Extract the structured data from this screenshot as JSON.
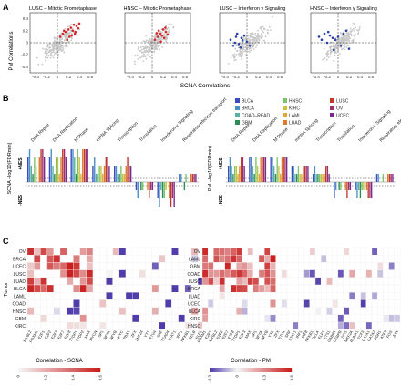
{
  "panel_labels": {
    "a": "A",
    "b": "B",
    "c": "C"
  },
  "panelA": {
    "ylabel": "PM Correlations",
    "xlabel": "SCNA Correlations",
    "xticks": [
      "-0.4",
      "-0.2",
      "0",
      "0.2",
      "0.4",
      "0.6"
    ],
    "yticks": [
      "0.4",
      "0.2",
      "0",
      "-0.2",
      "-0.4"
    ],
    "plots": [
      {
        "title": "LUSC – Mitotic Prometaphase",
        "color": "#d62728"
      },
      {
        "title": "HNSC – Mitotic Prometaphase",
        "color": "#d62728"
      },
      {
        "title": "LUSC – Interferon γ Signaling",
        "color": "#2a3fa8"
      },
      {
        "title": "HNSC – Interferon γ Signaling",
        "color": "#2a3fa8"
      }
    ]
  },
  "panelB": {
    "legend": [
      {
        "label": "BLCA",
        "color": "#3b4cc0"
      },
      {
        "label": "BRCA",
        "color": "#4a90c8"
      },
      {
        "label": "COAD–READ",
        "color": "#5bb0a0"
      },
      {
        "label": "GBM",
        "color": "#2e8b57"
      },
      {
        "label": "HNSC",
        "color": "#7cc36b"
      },
      {
        "label": "KIRC",
        "color": "#c7c33a"
      },
      {
        "label": "LAML",
        "color": "#e0a83a"
      },
      {
        "label": "LUAD",
        "color": "#e07a2a"
      },
      {
        "label": "LUSC",
        "color": "#c0392b"
      },
      {
        "label": "OV",
        "color": "#a0306a"
      },
      {
        "label": "UCEC",
        "color": "#7a2a8a"
      }
    ],
    "categories": [
      "DNA Repair",
      "DNA Replication",
      "M Phase",
      "mRNA Splicing",
      "Transcription",
      "Translation",
      "Interferon γ Signaling",
      "Respiratory electron transport"
    ],
    "left": {
      "ylabel": "SCNA –log10(FDRmin)",
      "pos_label": "+NES",
      "neg_label": "-NES"
    },
    "right": {
      "ylabel": "PM –log10(FDRmin)",
      "pos_label": "+NES",
      "neg_label": "-NES"
    }
  },
  "panelC": {
    "ylabel": "Tumor",
    "left": {
      "rows": [
        "OV",
        "BRCA",
        "UCEC",
        "LUSC",
        "LUAD",
        "BLCA",
        "LAML",
        "COAD",
        "HNSC",
        "GBM",
        "KIRC"
      ],
      "cols": [
        "MYBL2",
        "FOXM1",
        "E2F1",
        "E2F2",
        "E2F3",
        "E2F7",
        "E2F8",
        "TFDP1",
        "TFDP2",
        "MAX",
        "MYCN",
        "SP1",
        "NFYA",
        "NFYB",
        "NFYC",
        "PBX1",
        "ZFX",
        "ZNF24",
        "YY1",
        "ETV4",
        "SRF",
        "TEAD4",
        "STAT1",
        "IRF1",
        "NFKB1",
        "RELB",
        "ELF1"
      ],
      "legend_title": "Correlation - SCNA",
      "legend_ticks": [
        "0",
        "0.2",
        "0.4",
        "0.6"
      ]
    },
    "right": {
      "rows": [
        "OV",
        "LAML",
        "GBM",
        "COAD",
        "LUSC",
        "BRCA",
        "LUAD",
        "UCEC",
        "BLCA",
        "KIRC",
        "HNSC"
      ],
      "cols": [
        "FOXM1",
        "E2F1",
        "MYBL2",
        "E2F2",
        "E2F7",
        "E2F8",
        "TFDP1",
        "E2F3",
        "MAX",
        "SP1",
        "NFYA",
        "NFYB",
        "YY1",
        "ZFX",
        "ETV4",
        "SRF",
        "STAT1",
        "IRF1",
        "IRF8",
        "NFKB1",
        "RELA",
        "ELF1",
        "ETS1",
        "GABPA",
        "CEBPB",
        "SPI1",
        "MEF2A",
        "RUNX1",
        "TCF3",
        "GATA1",
        "GATA2",
        "EGR1",
        "ATF3",
        "FOS",
        "JUN"
      ],
      "legend_title": "Correlation - PM",
      "legend_ticks": [
        "-0.3",
        "0",
        "0.3",
        "0.6"
      ]
    }
  },
  "chart_data": [
    {
      "type": "scatter",
      "title": "LUSC – Mitotic Prometaphase",
      "xlabel": "SCNA Correlations",
      "ylabel": "PM Correlations",
      "xlim": [
        -0.5,
        0.7
      ],
      "ylim": [
        -0.5,
        0.5
      ],
      "highlight": {
        "x": [
          0.05,
          0.1,
          0.15,
          0.2,
          0.22,
          0.25,
          0.28,
          0.3,
          0.32,
          0.35,
          0.38,
          0.4,
          0.18,
          0.12,
          0.26,
          0.33
        ],
        "y": [
          0.1,
          0.15,
          0.18,
          0.22,
          0.1,
          0.25,
          0.2,
          0.3,
          0.15,
          0.28,
          0.24,
          0.32,
          0.05,
          0.2,
          0.12,
          0.18
        ]
      }
    },
    {
      "type": "scatter",
      "title": "HNSC – Mitotic Prometaphase",
      "xlabel": "SCNA Correlations",
      "ylabel": "PM Correlations",
      "xlim": [
        -0.5,
        0.7
      ],
      "ylim": [
        -0.5,
        0.5
      ],
      "highlight": {
        "x": [
          0.05,
          0.1,
          0.12,
          0.15,
          0.18,
          0.2,
          0.22,
          0.25,
          0.28,
          0.08,
          0.16,
          0.24
        ],
        "y": [
          0.05,
          0.1,
          0.2,
          0.15,
          0.12,
          0.22,
          0.08,
          0.18,
          0.14,
          0.16,
          0.02,
          0.25
        ]
      }
    },
    {
      "type": "scatter",
      "title": "LUSC – Interferon γ Signaling",
      "xlabel": "SCNA Correlations",
      "ylabel": "PM Correlations",
      "xlim": [
        -0.5,
        0.7
      ],
      "ylim": [
        -0.5,
        0.5
      ],
      "highlight": {
        "x": [
          -0.3,
          -0.25,
          -0.2,
          -0.15,
          -0.1,
          -0.05,
          0,
          0.05,
          -0.18,
          -0.12,
          -0.08,
          -0.22
        ],
        "y": [
          0.05,
          -0.05,
          0.1,
          -0.02,
          0.08,
          0.12,
          0.02,
          -0.05,
          0.15,
          -0.08,
          0.04,
          0.0
        ]
      }
    },
    {
      "type": "scatter",
      "title": "HNSC – Interferon γ Signaling",
      "xlabel": "SCNA Correlations",
      "ylabel": "PM Correlations",
      "xlim": [
        -0.5,
        0.7
      ],
      "ylim": [
        -0.5,
        0.5
      ],
      "highlight": {
        "x": [
          -0.35,
          -0.3,
          -0.25,
          -0.2,
          -0.15,
          -0.1,
          -0.05,
          0.0,
          0.05,
          0.1,
          0.15,
          0.2,
          -0.18,
          -0.08
        ],
        "y": [
          0.1,
          0.05,
          0.15,
          0.0,
          0.12,
          0.08,
          0.05,
          0.1,
          -0.05,
          0.15,
          0.2,
          -0.1,
          0.18,
          -0.12
        ]
      }
    },
    {
      "type": "bar",
      "title": "",
      "ylabel": "SCNA –log10(FDRmin)",
      "categories": [
        "DNA Repair",
        "DNA Replication",
        "M Phase",
        "mRNA Splicing",
        "Transcription",
        "Translation",
        "Interferon γ Signaling",
        "Respiratory electron transport"
      ],
      "series_names": [
        "BLCA",
        "BRCA",
        "COAD–READ",
        "GBM",
        "HNSC",
        "KIRC",
        "LAML",
        "LUAD",
        "LUSC",
        "OV",
        "UCEC"
      ],
      "values": [
        [
          3,
          4,
          2,
          1,
          3,
          2,
          0,
          3,
          4,
          4,
          3
        ],
        [
          3,
          4,
          2,
          1,
          3,
          3,
          1,
          3,
          4,
          4,
          3
        ],
        [
          4,
          4,
          3,
          1,
          4,
          3,
          1,
          4,
          4,
          4,
          4
        ],
        [
          2,
          3,
          1,
          1,
          2,
          2,
          1,
          2,
          3,
          3,
          2
        ],
        [
          2,
          2,
          1,
          1,
          2,
          1,
          1,
          2,
          3,
          2,
          2
        ],
        [
          -1,
          -2,
          0,
          -1,
          -1,
          0,
          0,
          -1,
          -2,
          -1,
          -1
        ],
        [
          -2,
          -3,
          -1,
          -2,
          -2,
          -1,
          0,
          -2,
          -3,
          -2,
          -3
        ],
        [
          1,
          1,
          0,
          -1,
          1,
          0,
          0,
          1,
          1,
          1,
          1
        ]
      ]
    },
    {
      "type": "bar",
      "title": "",
      "ylabel": "PM –log10(FDRmin)",
      "categories": [
        "DNA Repair",
        "DNA Replication",
        "M Phase",
        "mRNA Splicing",
        "Transcription",
        "Translation",
        "Interferon γ Signaling",
        "Respiratory electron transport"
      ],
      "series_names": [
        "BLCA",
        "BRCA",
        "COAD–READ",
        "GBM",
        "HNSC",
        "KIRC",
        "LAML",
        "LUAD",
        "LUSC",
        "OV",
        "UCEC"
      ],
      "values": [
        [
          2,
          3,
          2,
          1,
          2,
          2,
          1,
          2,
          3,
          3,
          2
        ],
        [
          3,
          3,
          2,
          1,
          3,
          2,
          1,
          3,
          3,
          3,
          3
        ],
        [
          3,
          3,
          2,
          1,
          3,
          2,
          1,
          3,
          3,
          3,
          3
        ],
        [
          2,
          2,
          1,
          1,
          2,
          1,
          1,
          2,
          2,
          2,
          2
        ],
        [
          1,
          2,
          1,
          1,
          1,
          1,
          1,
          1,
          2,
          2,
          1
        ],
        [
          -2,
          -1,
          0,
          -1,
          -1,
          0,
          0,
          -1,
          -2,
          -1,
          -1
        ],
        [
          -1,
          -2,
          -1,
          -2,
          -1,
          -1,
          0,
          -1,
          -2,
          -2,
          -2
        ],
        [
          1,
          1,
          0,
          0,
          1,
          0,
          0,
          1,
          1,
          1,
          1
        ]
      ]
    },
    {
      "type": "heatmap",
      "title": "",
      "ylabel": "Tumor",
      "legend_title": "Correlation - SCNA",
      "note": "significant cells only; values are correlations"
    },
    {
      "type": "heatmap",
      "title": "",
      "ylabel": "Tumor",
      "legend_title": "Correlation - PM",
      "note": "significant cells only; values are correlations"
    }
  ]
}
